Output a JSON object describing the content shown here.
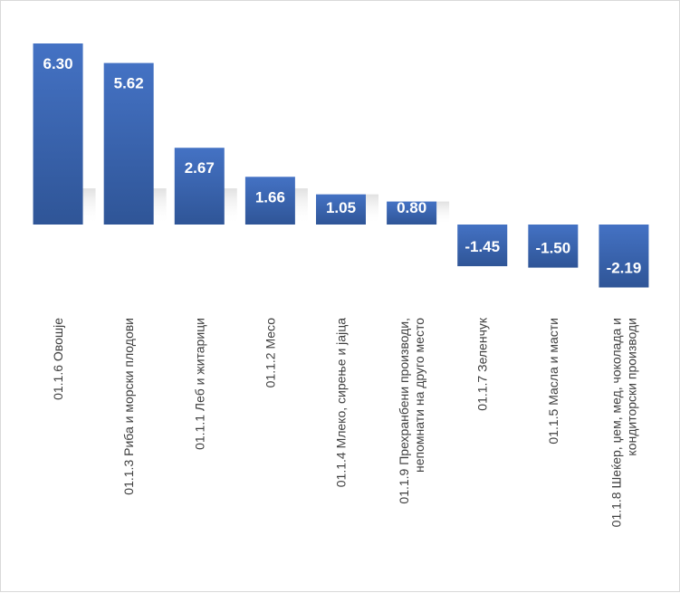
{
  "chart_data": {
    "type": "bar",
    "title": "",
    "xlabel": "",
    "ylabel": "",
    "legend": "none",
    "grid": false,
    "y_axis_visible": false,
    "ylim": [
      -2.19,
      6.3
    ],
    "bar_color": "#4472c4",
    "bar_color_dark": "#2f5597",
    "label_color": "#ffffff",
    "category_label_color": "#404040",
    "categories": [
      [
        "01.1.6 Овошје"
      ],
      [
        "01.1.3 Риба и морски плодови"
      ],
      [
        "01.1.1 Леб и житарици"
      ],
      [
        "01.1.2 Месо"
      ],
      [
        "01.1.4 Млеко, сирење и јајца"
      ],
      [
        "01.1.9 Прехранбени производи,",
        "непомнати на друго место"
      ],
      [
        "01.1.7 Зеленчук"
      ],
      [
        "01.1.5 Масла и масти"
      ],
      [
        "01.1.8 Шеќер, џем, мед, чоколада и",
        "кондиторски производи"
      ]
    ],
    "values": [
      6.3,
      5.62,
      2.67,
      1.66,
      1.05,
      0.8,
      -1.45,
      -1.5,
      -2.19
    ],
    "data_labels": [
      "6.30",
      "5.62",
      "2.67",
      "1.66",
      "1.05",
      "0.80",
      "-1.45",
      "-1.50",
      "-2.19"
    ]
  }
}
